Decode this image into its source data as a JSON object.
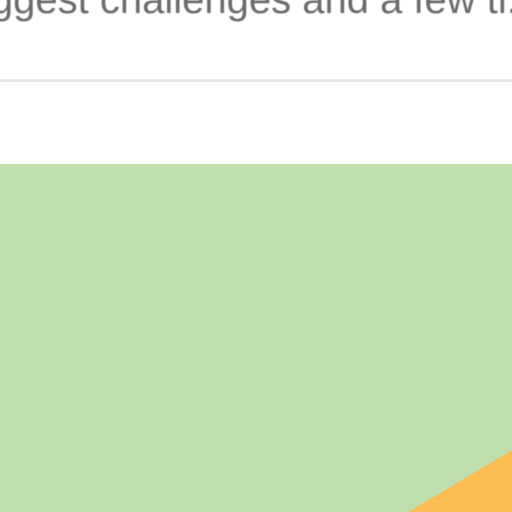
{
  "card": {
    "snippet_text": "iggest challenges and a few ti...",
    "colors": {
      "snippet_text": "#6b6b6b",
      "divider": "#e8e8e8",
      "background": "#ffffff",
      "thumbnail_green": "#bfe0ae",
      "thumbnail_orange": "#fdbd52"
    }
  }
}
